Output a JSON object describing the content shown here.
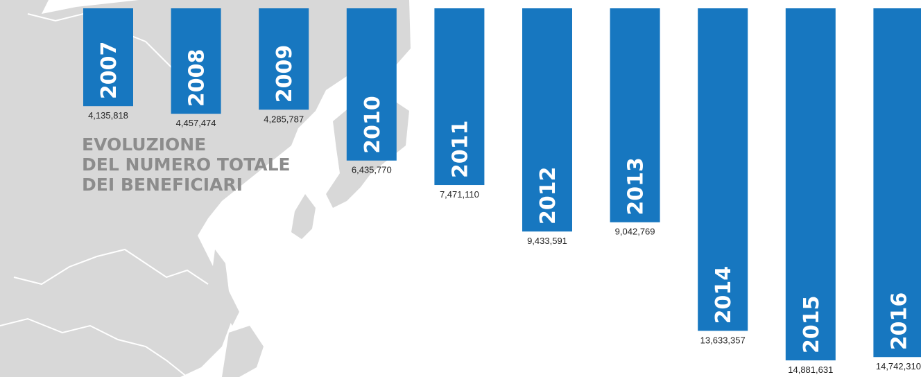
{
  "chart_data": {
    "type": "bar",
    "title": [
      "EVOLUZIONE",
      "DEL NUMERO TOTALE",
      "DEI BENEFICIARI"
    ],
    "categories": [
      "2007",
      "2008",
      "2009",
      "2010",
      "2011",
      "2012",
      "2013",
      "2014",
      "2015",
      "2016"
    ],
    "values": [
      4135818,
      4457474,
      4285787,
      6435770,
      7471110,
      9433591,
      9042769,
      13633357,
      14881631,
      14742310
    ],
    "value_labels": [
      "4,135,818",
      "4,457,474",
      "4,285,787",
      "6,435,770",
      "7,471,110",
      "9,433,591",
      "9,042,769",
      "13,633,357",
      "14,881,631",
      "14,742,310"
    ],
    "color": "#1777c0"
  }
}
